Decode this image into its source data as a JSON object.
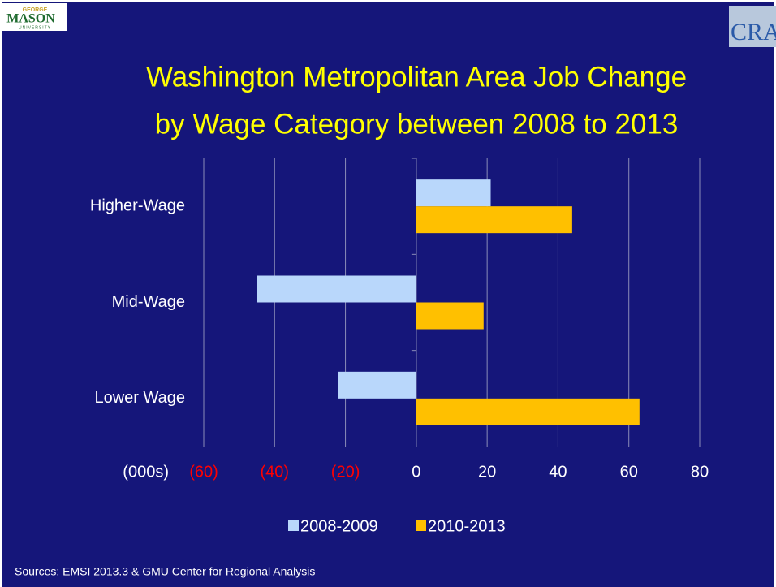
{
  "chart_data": {
    "type": "barh",
    "logos": {
      "left": [
        "GEORGE",
        "MASON",
        "UNIVERSITY"
      ],
      "right": "CRA"
    },
    "title": [
      "Washington Metropolitan Area Job Change",
      "by Wage Category between 2008 to 2013"
    ],
    "categories": [
      "Higher-Wage",
      "Mid-Wage",
      "Lower Wage"
    ],
    "series": [
      {
        "name": "2008-2009",
        "color": "#b9d7fb",
        "values": [
          21,
          -45,
          -22
        ]
      },
      {
        "name": "2010-2013",
        "color": "#ffc000",
        "values": [
          44,
          19,
          63
        ]
      }
    ],
    "xlabel": "(000s)",
    "xlim": [
      -60,
      80
    ],
    "xticks": [
      {
        "value": -60,
        "label": "(60)"
      },
      {
        "value": -40,
        "label": "(40)"
      },
      {
        "value": -20,
        "label": "(20)"
      },
      0,
      20,
      40,
      60,
      80
    ],
    "negative_tick_color": "#ff0000",
    "grid": true,
    "legend": "bottom",
    "source": "Sources:  EMSI 2013.3 & GMU Center for Regional Analysis"
  }
}
